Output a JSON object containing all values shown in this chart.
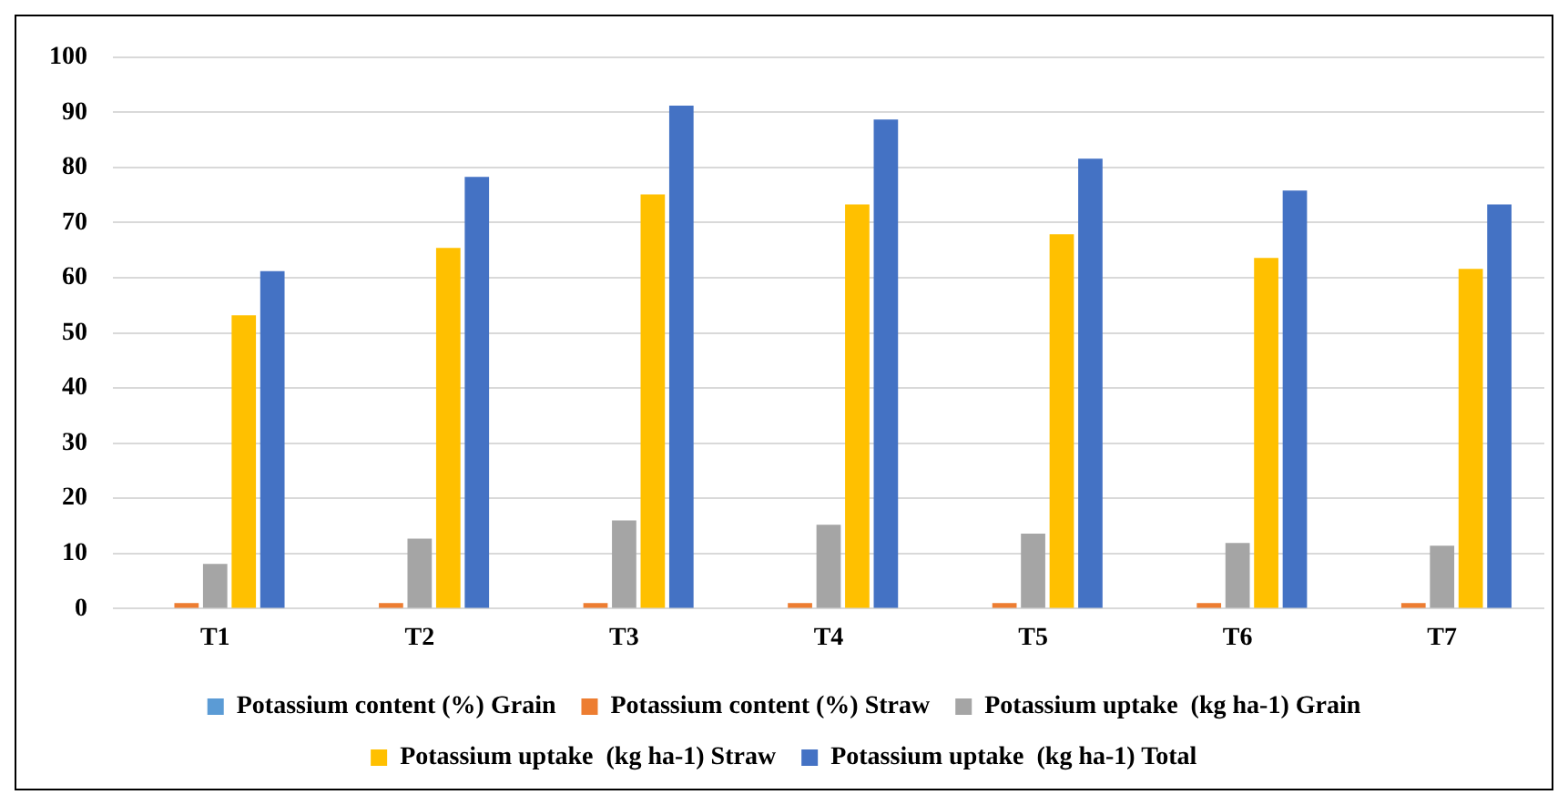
{
  "chart_data": {
    "type": "bar",
    "categories": [
      "T1",
      "T2",
      "T3",
      "T4",
      "T5",
      "T6",
      "T7"
    ],
    "series": [
      {
        "name": "Potassium content (%) Grain",
        "color": "#5b9bd5",
        "values": [
          null,
          null,
          null,
          null,
          null,
          null,
          null
        ]
      },
      {
        "name": "Potassium content (%) Straw",
        "color": "#ed7d31",
        "values": [
          1,
          1,
          1,
          1,
          1,
          1,
          1
        ]
      },
      {
        "name": "Potassium uptake  (kg ha-1) Grain",
        "color": "#a5a5a5",
        "values": [
          8.1,
          12.7,
          16.0,
          15.2,
          13.6,
          11.9,
          11.4
        ]
      },
      {
        "name": "Potassium uptake  (kg ha-1) Straw",
        "color": "#ffc000",
        "values": [
          53.2,
          65.4,
          75.1,
          73.3,
          67.9,
          63.6,
          61.6
        ]
      },
      {
        "name": "Potassium uptake  (kg ha-1) Total",
        "color": "#4472c4",
        "values": [
          61.2,
          78.3,
          91.2,
          88.7,
          81.6,
          75.8,
          73.3
        ]
      }
    ],
    "ylim": [
      0,
      100
    ],
    "yticks": [
      0,
      10,
      20,
      30,
      40,
      50,
      60,
      70,
      80,
      90,
      100
    ],
    "grid": "y",
    "legend": "bottom"
  }
}
